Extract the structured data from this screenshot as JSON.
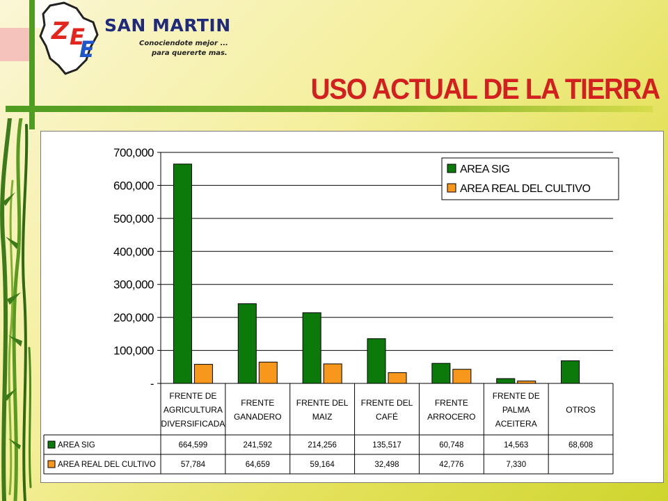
{
  "slide": {
    "title": "USO ACTUAL DE LA TIERRA"
  },
  "logo": {
    "letters": "ZEE",
    "name": "SAN MARTIN",
    "tagline_line1": "Conociendote mejor ...",
    "tagline_line2": "para quererte mas."
  },
  "colors": {
    "area_sig": "#0b7a0b",
    "area_real": "#f7981d",
    "title_red": "#d31f1f",
    "logo_blue": "#1f2a7a",
    "logo_red": "#e3261d",
    "frame_green": "#4f9c22"
  },
  "chart_data": {
    "type": "bar",
    "title": "",
    "xlabel": "",
    "ylabel": "",
    "ylim": [
      0,
      700000
    ],
    "y_ticks": [
      "-",
      "100,000",
      "200,000",
      "300,000",
      "400,000",
      "500,000",
      "600,000",
      "700,000"
    ],
    "grid": true,
    "legend_position": "top-right",
    "categories": [
      [
        "FRENTE DE",
        "AGRICULTURA",
        "DIVERSIFICADA"
      ],
      [
        "FRENTE",
        "GANADERO"
      ],
      [
        "FRENTE DEL",
        "MAIZ"
      ],
      [
        "FRENTE DEL",
        "CAFÉ"
      ],
      [
        "FRENTE",
        "ARROCERO"
      ],
      [
        "FRENTE DE",
        "PALMA",
        "ACEITERA"
      ],
      [
        "OTROS"
      ]
    ],
    "series": [
      {
        "name": "AREA SIG",
        "color": "#0b7a0b",
        "values": [
          664599,
          241592,
          214256,
          135517,
          60748,
          14563,
          68608
        ],
        "labels": [
          "664,599",
          "241,592",
          "214,256",
          "135,517",
          "60,748",
          "14,563",
          "68,608"
        ]
      },
      {
        "name": "AREA REAL DEL CULTIVO",
        "color": "#f7981d",
        "values": [
          57784,
          64659,
          59164,
          32498,
          42776,
          7330,
          null
        ],
        "labels": [
          "57,784",
          "64,659",
          "59,164",
          "32,498",
          "42,776",
          "7,330",
          ""
        ]
      }
    ]
  }
}
